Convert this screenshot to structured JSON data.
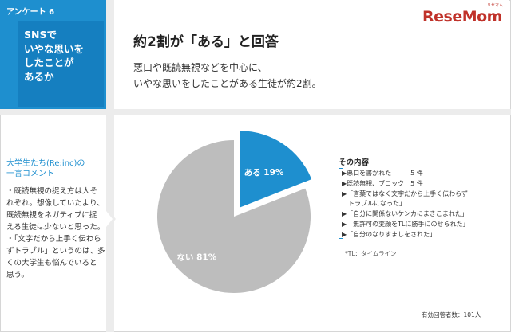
{
  "question": {
    "tag": "アンケート 6",
    "lines": [
      "SNSで",
      "いやな思いを",
      "したことが",
      "あるか"
    ]
  },
  "header": {
    "title": "約2割が「ある」と回答",
    "subtitle_lines": [
      "悪口や既読無視などを中心に、",
      "いやな思いをしたことがある生徒が約2割。"
    ]
  },
  "logo": {
    "text": "ReseMom",
    "kana": "リセマム"
  },
  "comment": {
    "title_lines": [
      "大学生たち(Re:inc)の",
      "一言コメント"
    ],
    "body_lines": [
      "・既読無視の捉え方は人そ",
      "れぞれ。想像していたより、",
      "既読無視をネガティブに捉",
      "える生徒は少ないと思った。",
      "・「文字だから上手く伝わら",
      "ずトラブル」というのは、多",
      "くの大学生も悩んでいると",
      "思う。"
    ]
  },
  "chart_data": {
    "type": "pie",
    "slices": [
      {
        "label": "ある",
        "value": 19,
        "display": "ある 19%",
        "color": "#1e8fcf"
      },
      {
        "label": "ない",
        "value": 81,
        "display": "ない 81%",
        "color": "#bdbdbd"
      }
    ]
  },
  "legend": {
    "title": "その内容",
    "items": [
      "▶悪口を書かれた　　　5 件",
      "▶既読無視、ブロック　5 件",
      "▶「言葉ではなく文字だから上手く伝わらず",
      "　トラブルになった」",
      "▶「自分に関係ないケンカにまきこまれた」",
      "▶「無許可の変顔をTLに勝手にのせられた」",
      "▶「自分のなりすましをされた」"
    ],
    "note": "*TL：タイムライン"
  },
  "footer": {
    "respondents": "有効回答者数：101人"
  }
}
